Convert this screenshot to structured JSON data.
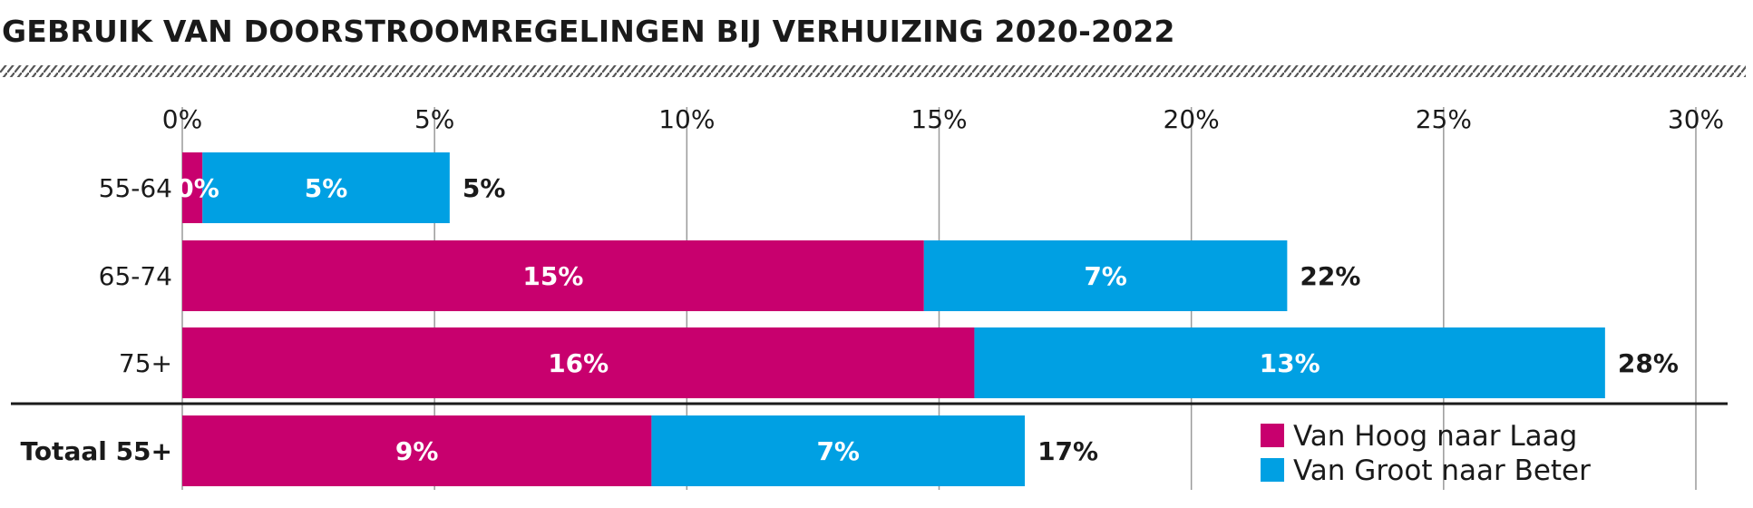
{
  "chart_data": {
    "type": "bar",
    "orientation": "horizontal",
    "stacked": true,
    "title": "GEBRUIK VAN DOORSTROOMREGELINGEN BIJ VERHUIZING 2020-2022",
    "xlim": [
      0,
      30
    ],
    "xticks": [
      0,
      5,
      10,
      15,
      20,
      25,
      30
    ],
    "xtick_labels": [
      "0%",
      "5%",
      "10%",
      "15%",
      "20%",
      "25%",
      "30%"
    ],
    "grid": true,
    "legend_position": "bottom-right",
    "categories": [
      "55-64",
      "65-74",
      "75+",
      "Totaal 55+"
    ],
    "series": [
      {
        "name": "Van Hoog naar Laag",
        "color": "#c8006e",
        "values": [
          0.4,
          14.7,
          15.7,
          9.3
        ],
        "labels": [
          "0%",
          "15%",
          "16%",
          "9%"
        ]
      },
      {
        "name": "Van Groot naar Beter",
        "color": "#00a0e3",
        "values": [
          4.9,
          7.2,
          12.5,
          7.4
        ],
        "labels": [
          "5%",
          "7%",
          "13%",
          "7%"
        ]
      }
    ],
    "totals": [
      5.3,
      21.9,
      28.2,
      16.7
    ],
    "total_labels": [
      "5%",
      "22%",
      "28%",
      "17%"
    ]
  }
}
